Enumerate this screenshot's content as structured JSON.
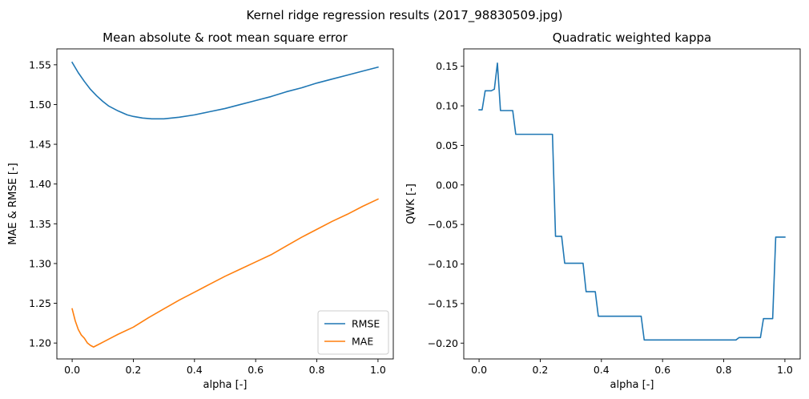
{
  "figure": {
    "suptitle": "Kernel ridge regression results (2017_98830509.jpg)"
  },
  "chart_data": [
    {
      "type": "line",
      "title": "Mean absolute & root mean square error",
      "xlabel": "alpha [-]",
      "ylabel": "MAE & RMSE [-]",
      "xlim": [
        -0.05,
        1.05
      ],
      "ylim": [
        1.18,
        1.57
      ],
      "xticks": [
        0.0,
        0.2,
        0.4,
        0.6,
        0.8,
        1.0
      ],
      "xtick_labels": [
        "0.0",
        "0.2",
        "0.4",
        "0.6",
        "0.8",
        "1.0"
      ],
      "yticks": [
        1.2,
        1.25,
        1.3,
        1.35,
        1.4,
        1.45,
        1.5,
        1.55
      ],
      "ytick_labels": [
        "1.20",
        "1.25",
        "1.30",
        "1.35",
        "1.40",
        "1.45",
        "1.50",
        "1.55"
      ],
      "grid": false,
      "legend": "lower right",
      "series": [
        {
          "name": "RMSE",
          "color": "#1f77b4",
          "x": [
            0.0,
            0.02,
            0.04,
            0.06,
            0.08,
            0.1,
            0.12,
            0.15,
            0.18,
            0.2,
            0.23,
            0.26,
            0.3,
            0.35,
            0.4,
            0.45,
            0.5,
            0.55,
            0.6,
            0.65,
            0.7,
            0.75,
            0.8,
            0.85,
            0.9,
            0.95,
            1.0
          ],
          "y": [
            1.553,
            1.54,
            1.529,
            1.519,
            1.511,
            1.504,
            1.498,
            1.492,
            1.487,
            1.485,
            1.483,
            1.482,
            1.482,
            1.484,
            1.487,
            1.491,
            1.495,
            1.5,
            1.505,
            1.51,
            1.516,
            1.521,
            1.527,
            1.532,
            1.537,
            1.542,
            1.547
          ]
        },
        {
          "name": "MAE",
          "color": "#ff7f0e",
          "x": [
            0.0,
            0.01,
            0.02,
            0.03,
            0.04,
            0.05,
            0.06,
            0.07,
            0.08,
            0.1,
            0.12,
            0.15,
            0.2,
            0.25,
            0.3,
            0.35,
            0.4,
            0.45,
            0.5,
            0.55,
            0.6,
            0.65,
            0.7,
            0.75,
            0.8,
            0.85,
            0.9,
            0.95,
            1.0
          ],
          "y": [
            1.243,
            1.228,
            1.217,
            1.21,
            1.206,
            1.2,
            1.197,
            1.195,
            1.197,
            1.201,
            1.205,
            1.211,
            1.22,
            1.232,
            1.243,
            1.254,
            1.264,
            1.274,
            1.284,
            1.293,
            1.302,
            1.311,
            1.322,
            1.333,
            1.343,
            1.353,
            1.362,
            1.372,
            1.381
          ]
        }
      ]
    },
    {
      "type": "line",
      "title": "Quadratic weighted kappa",
      "xlabel": "alpha [-]",
      "ylabel": "QWK [-]",
      "xlim": [
        -0.05,
        1.05
      ],
      "ylim": [
        -0.22,
        0.172
      ],
      "xticks": [
        0.0,
        0.2,
        0.4,
        0.6,
        0.8,
        1.0
      ],
      "xtick_labels": [
        "0.0",
        "0.2",
        "0.4",
        "0.6",
        "0.8",
        "1.0"
      ],
      "yticks": [
        -0.2,
        -0.15,
        -0.1,
        -0.05,
        0.0,
        0.05,
        0.1,
        0.15
      ],
      "ytick_labels": [
        "−0.20",
        "−0.15",
        "−0.10",
        "−0.05",
        "0.00",
        "0.05",
        "0.10",
        "0.15"
      ],
      "grid": false,
      "series": [
        {
          "color": "#1f77b4",
          "x": [
            0.0,
            0.01,
            0.02,
            0.04,
            0.05,
            0.06,
            0.07,
            0.11,
            0.12,
            0.24,
            0.25,
            0.27,
            0.28,
            0.34,
            0.35,
            0.38,
            0.39,
            0.53,
            0.54,
            0.84,
            0.85,
            0.92,
            0.93,
            0.95,
            0.96,
            0.97,
            1.0
          ],
          "y": [
            0.095,
            0.095,
            0.119,
            0.119,
            0.121,
            0.154,
            0.094,
            0.094,
            0.064,
            0.064,
            -0.065,
            -0.065,
            -0.099,
            -0.099,
            -0.135,
            -0.135,
            -0.166,
            -0.166,
            -0.196,
            -0.196,
            -0.193,
            -0.193,
            -0.169,
            -0.169,
            -0.169,
            -0.066,
            -0.066
          ]
        }
      ]
    }
  ]
}
